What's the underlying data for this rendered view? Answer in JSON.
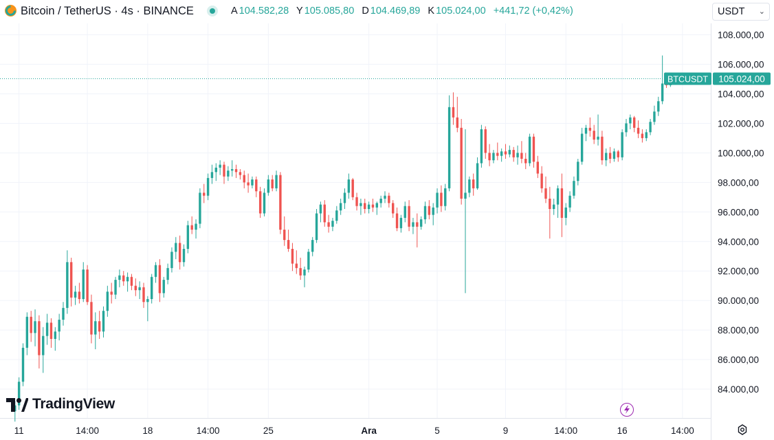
{
  "header": {
    "symbol": "Bitcoin / TetherUS · 4s · BINANCE",
    "open_key": "A",
    "open": "104.582,28",
    "high_key": "Y",
    "high": "105.085,80",
    "low_key": "D",
    "low": "104.469,89",
    "close_key": "K",
    "close": "105.024,00",
    "change": "+441,72 (+0,42%)",
    "currency": "USDT"
  },
  "branding": {
    "logo_text": "TradingView"
  },
  "colors": {
    "up": "#26a69a",
    "down": "#ef5350",
    "accent": "#9c27b0"
  },
  "chart_data": {
    "type": "candlestick",
    "interval": "4h",
    "ylim": [
      82000,
      110000
    ],
    "y_ticks": [
      84000,
      86000,
      88000,
      90000,
      92000,
      94000,
      96000,
      98000,
      100000,
      102000,
      104000,
      106000,
      108000
    ],
    "y_tick_labels": [
      "84.000,00",
      "86.000,00",
      "88.000,00",
      "90.000,00",
      "92.000,00",
      "94.000,00",
      "96.000,00",
      "98.000,00",
      "100.000,00",
      "102.000,00",
      "104.000,00",
      "106.000,00",
      "108.000,00"
    ],
    "x_labels": [
      {
        "bar": 1,
        "label": "11"
      },
      {
        "bar": 18,
        "label": "14:00"
      },
      {
        "bar": 33,
        "label": "18"
      },
      {
        "bar": 48,
        "label": "14:00"
      },
      {
        "bar": 63,
        "label": "25"
      },
      {
        "bar": 88,
        "label": "Ara"
      },
      {
        "bar": 105,
        "label": "5"
      },
      {
        "bar": 122,
        "label": "9"
      },
      {
        "bar": 137,
        "label": "14:00"
      },
      {
        "bar": 151,
        "label": "16"
      },
      {
        "bar": 166,
        "label": "14:00"
      }
    ],
    "bold_x_labels": [
      "Ara"
    ],
    "last_price": {
      "value": 105024,
      "symbol_label": "BTCUSDT",
      "price_label": "105.024,00"
    },
    "candles": [
      [
        82500,
        83200,
        81800,
        82900
      ],
      [
        82900,
        84800,
        82600,
        84500
      ],
      [
        84500,
        87100,
        84200,
        86800
      ],
      [
        86800,
        89200,
        86300,
        88900
      ],
      [
        88900,
        89300,
        87200,
        87800
      ],
      [
        87800,
        89400,
        86900,
        88600
      ],
      [
        88600,
        89000,
        85400,
        86300
      ],
      [
        86300,
        88200,
        85100,
        87600
      ],
      [
        87600,
        89100,
        87000,
        88500
      ],
      [
        88500,
        88800,
        86800,
        87400
      ],
      [
        87400,
        88200,
        86600,
        87900
      ],
      [
        87900,
        89100,
        87300,
        88700
      ],
      [
        88700,
        89900,
        88300,
        89500
      ],
      [
        89500,
        93400,
        89100,
        92600
      ],
      [
        92600,
        92900,
        89600,
        90200
      ],
      [
        90200,
        91000,
        89700,
        90600
      ],
      [
        90600,
        91200,
        89800,
        90100
      ],
      [
        90100,
        92600,
        89900,
        92100
      ],
      [
        92100,
        92400,
        89700,
        89900
      ],
      [
        89900,
        90400,
        87100,
        87700
      ],
      [
        87700,
        89200,
        86700,
        88600
      ],
      [
        88600,
        89300,
        87400,
        87900
      ],
      [
        87900,
        89600,
        87500,
        89300
      ],
      [
        89300,
        91000,
        88900,
        90600
      ],
      [
        90600,
        91200,
        89800,
        90400
      ],
      [
        90400,
        91600,
        90100,
        91400
      ],
      [
        91400,
        92100,
        90900,
        91700
      ],
      [
        91700,
        92000,
        91000,
        91300
      ],
      [
        91300,
        91900,
        90600,
        91600
      ],
      [
        91600,
        91800,
        90700,
        91000
      ],
      [
        91000,
        91500,
        90300,
        90700
      ],
      [
        90700,
        91300,
        90100,
        90900
      ],
      [
        90900,
        91200,
        89500,
        89900
      ],
      [
        89900,
        90300,
        88600,
        90100
      ],
      [
        90100,
        91800,
        89800,
        91600
      ],
      [
        91600,
        92600,
        91200,
        92400
      ],
      [
        92400,
        92800,
        89900,
        90500
      ],
      [
        90500,
        91600,
        90200,
        91400
      ],
      [
        91400,
        92500,
        91100,
        92200
      ],
      [
        92200,
        93600,
        91900,
        93300
      ],
      [
        93300,
        94300,
        92800,
        93900
      ],
      [
        93900,
        94400,
        92100,
        92600
      ],
      [
        92600,
        93800,
        92300,
        93500
      ],
      [
        93500,
        95400,
        93200,
        95100
      ],
      [
        95100,
        95700,
        94500,
        94800
      ],
      [
        94800,
        95500,
        94200,
        95200
      ],
      [
        95200,
        97600,
        94900,
        97300
      ],
      [
        97300,
        97900,
        96600,
        97100
      ],
      [
        97100,
        98600,
        96800,
        98300
      ],
      [
        98300,
        99200,
        97900,
        98700
      ],
      [
        98700,
        99300,
        98100,
        99000
      ],
      [
        99000,
        99500,
        98500,
        99200
      ],
      [
        99200,
        99400,
        97900,
        98400
      ],
      [
        98400,
        99100,
        98100,
        98800
      ],
      [
        98800,
        99500,
        98400,
        98900
      ],
      [
        98900,
        99200,
        98300,
        98700
      ],
      [
        98700,
        98900,
        98200,
        98500
      ],
      [
        98500,
        98800,
        97600,
        98000
      ],
      [
        98000,
        98600,
        97300,
        97800
      ],
      [
        97800,
        98400,
        97600,
        98200
      ],
      [
        98200,
        98400,
        97000,
        97400
      ],
      [
        97400,
        97700,
        95600,
        95900
      ],
      [
        95900,
        97600,
        95700,
        97300
      ],
      [
        97300,
        98500,
        97100,
        98200
      ],
      [
        98200,
        98500,
        97400,
        97600
      ],
      [
        97600,
        98800,
        97400,
        98500
      ],
      [
        98500,
        98700,
        94500,
        94800
      ],
      [
        94800,
        95700,
        93700,
        94100
      ],
      [
        94100,
        94800,
        93300,
        93500
      ],
      [
        93500,
        93900,
        92000,
        92500
      ],
      [
        92500,
        93400,
        91800,
        92200
      ],
      [
        92200,
        92900,
        91400,
        91700
      ],
      [
        91700,
        92300,
        90900,
        92100
      ],
      [
        92100,
        93500,
        91900,
        93300
      ],
      [
        93300,
        94300,
        93000,
        94100
      ],
      [
        94100,
        96200,
        93900,
        95900
      ],
      [
        95900,
        96700,
        95300,
        96500
      ],
      [
        96500,
        96800,
        95000,
        95300
      ],
      [
        95300,
        95800,
        94600,
        95000
      ],
      [
        95000,
        95600,
        94700,
        95400
      ],
      [
        95400,
        96400,
        95200,
        96100
      ],
      [
        96100,
        96900,
        95800,
        96600
      ],
      [
        96600,
        97600,
        96200,
        97300
      ],
      [
        97300,
        98600,
        96900,
        98200
      ],
      [
        98200,
        98300,
        96800,
        97000
      ],
      [
        97000,
        97300,
        96100,
        96400
      ],
      [
        96400,
        96900,
        95800,
        96600
      ],
      [
        96600,
        96900,
        95900,
        96200
      ],
      [
        96200,
        96700,
        95900,
        96500
      ],
      [
        96500,
        96900,
        96000,
        96300
      ],
      [
        96300,
        96700,
        95800,
        96600
      ],
      [
        96600,
        97100,
        96300,
        96900
      ],
      [
        96900,
        97400,
        96600,
        97100
      ],
      [
        97100,
        97300,
        96300,
        96600
      ],
      [
        96600,
        96800,
        95600,
        95900
      ],
      [
        95900,
        96300,
        94700,
        94900
      ],
      [
        94900,
        95800,
        94600,
        95600
      ],
      [
        95600,
        96700,
        95300,
        96400
      ],
      [
        96400,
        96800,
        94700,
        95000
      ],
      [
        95000,
        95600,
        94500,
        95300
      ],
      [
        95300,
        95900,
        93600,
        95000
      ],
      [
        95000,
        95700,
        94800,
        95500
      ],
      [
        95500,
        96700,
        95200,
        96400
      ],
      [
        96400,
        96800,
        95500,
        95800
      ],
      [
        95800,
        96600,
        95100,
        96300
      ],
      [
        96300,
        97600,
        95900,
        97300
      ],
      [
        97300,
        97800,
        96000,
        96400
      ],
      [
        96400,
        97900,
        96100,
        97600
      ],
      [
        97600,
        103900,
        97400,
        103100
      ],
      [
        103100,
        104100,
        101900,
        102400
      ],
      [
        102400,
        103800,
        101400,
        101700
      ],
      [
        101700,
        102300,
        96500,
        96900
      ],
      [
        96900,
        101600,
        90500,
        97300
      ],
      [
        97300,
        98400,
        97000,
        98200
      ],
      [
        98200,
        98600,
        97100,
        97600
      ],
      [
        97600,
        99700,
        97500,
        99300
      ],
      [
        99300,
        101900,
        99000,
        101600
      ],
      [
        101600,
        101800,
        99600,
        100000
      ],
      [
        100000,
        100600,
        99100,
        99500
      ],
      [
        99500,
        100200,
        99300,
        100000
      ],
      [
        100000,
        100700,
        99500,
        99800
      ],
      [
        99800,
        100300,
        99400,
        100100
      ],
      [
        100100,
        100600,
        99600,
        99900
      ],
      [
        99900,
        100500,
        99700,
        100200
      ],
      [
        100200,
        100400,
        99400,
        99700
      ],
      [
        99700,
        100500,
        99200,
        100000
      ],
      [
        100000,
        100800,
        99300,
        99600
      ],
      [
        99600,
        100000,
        98900,
        99300
      ],
      [
        99300,
        101300,
        99100,
        101100
      ],
      [
        101100,
        101300,
        99000,
        99400
      ],
      [
        99400,
        99800,
        98300,
        98600
      ],
      [
        98600,
        99100,
        97300,
        97600
      ],
      [
        97600,
        98400,
        96600,
        96900
      ],
      [
        96900,
        97700,
        94200,
        96200
      ],
      [
        96200,
        96900,
        95800,
        96500
      ],
      [
        96500,
        97800,
        95600,
        97600
      ],
      [
        97600,
        98600,
        94300,
        95600
      ],
      [
        95600,
        96600,
        95100,
        96300
      ],
      [
        96300,
        97400,
        96000,
        97100
      ],
      [
        97100,
        98400,
        96900,
        98100
      ],
      [
        98100,
        99600,
        97800,
        99400
      ],
      [
        99400,
        101700,
        99200,
        101300
      ],
      [
        101300,
        101900,
        100800,
        101700
      ],
      [
        101700,
        102400,
        101100,
        101500
      ],
      [
        101500,
        101900,
        100600,
        100900
      ],
      [
        100900,
        102600,
        100500,
        101100
      ],
      [
        101100,
        101500,
        99200,
        99500
      ],
      [
        99500,
        100300,
        99100,
        100000
      ],
      [
        100000,
        100400,
        99300,
        99600
      ],
      [
        99600,
        100300,
        99400,
        100100
      ],
      [
        100100,
        100200,
        99400,
        99700
      ],
      [
        99700,
        101600,
        99500,
        101400
      ],
      [
        101400,
        102300,
        101100,
        102000
      ],
      [
        102000,
        102600,
        101600,
        102400
      ],
      [
        102400,
        102500,
        101400,
        101700
      ],
      [
        101700,
        102200,
        101000,
        101300
      ],
      [
        101300,
        101600,
        100700,
        101000
      ],
      [
        101000,
        101600,
        100800,
        101400
      ],
      [
        101400,
        102300,
        101200,
        102100
      ],
      [
        102100,
        103200,
        101900,
        102800
      ],
      [
        102800,
        103800,
        102500,
        103500
      ],
      [
        103500,
        106600,
        103300,
        104700
      ],
      [
        104700,
        105300,
        104400,
        104580
      ],
      [
        104582,
        105086,
        104470,
        105024
      ]
    ]
  }
}
